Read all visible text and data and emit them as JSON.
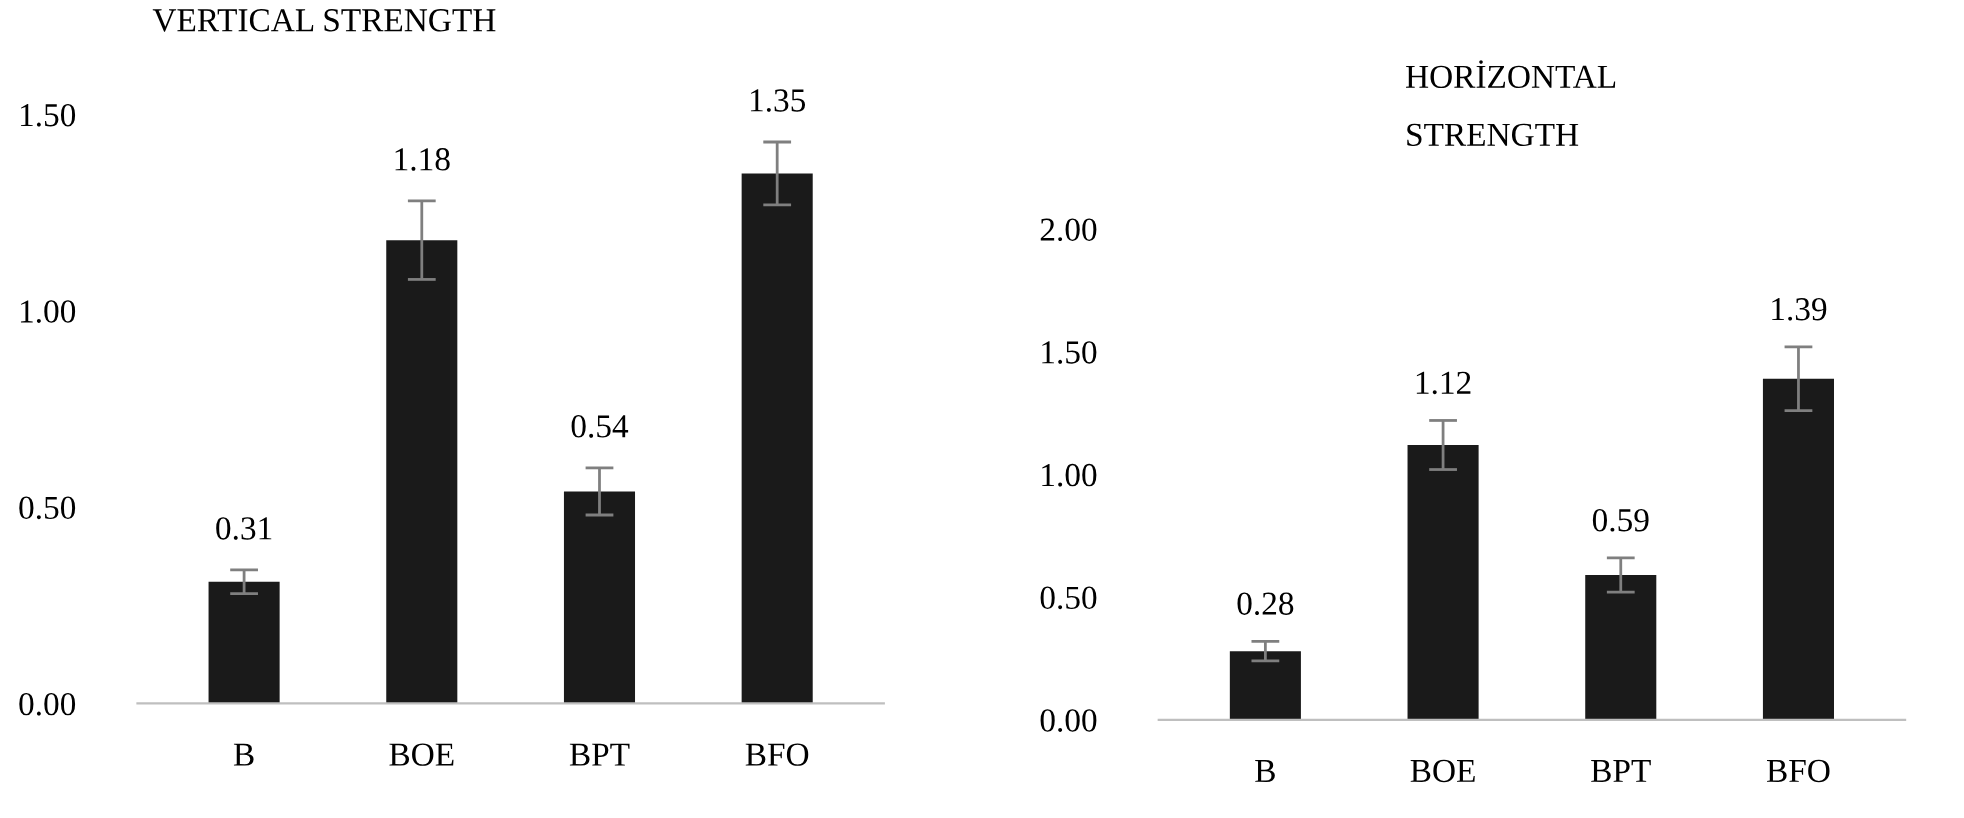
{
  "chart_data": [
    {
      "type": "bar",
      "title": "VERTICAL STRENGTH",
      "categories": [
        "B",
        "BOE",
        "BPT",
        "BFO"
      ],
      "values": [
        0.31,
        1.18,
        0.54,
        1.35
      ],
      "errors": [
        0.03,
        0.1,
        0.06,
        0.08
      ],
      "color": "#1a1a1a",
      "ylim": [
        0,
        1.5
      ],
      "yticks": [
        {
          "value": 0,
          "label": "0.00"
        },
        {
          "value": 0.5,
          "label": "0.50"
        },
        {
          "value": 1,
          "label": "1.00"
        },
        {
          "value": 1.5,
          "label": "1.50"
        }
      ],
      "grid": false,
      "data_labels": true
    },
    {
      "type": "bar",
      "title": "HORİZONTAL\nSTRENGTH",
      "categories": [
        "B",
        "BOE",
        "BPT",
        "BFO"
      ],
      "values": [
        0.28,
        1.12,
        0.59,
        1.39
      ],
      "errors": [
        0.04,
        0.1,
        0.07,
        0.13
      ],
      "color": "#1a1a1a",
      "ylim": [
        0,
        2
      ],
      "yticks": [
        {
          "value": 0,
          "label": "0.00"
        },
        {
          "value": 0.5,
          "label": "0.50"
        },
        {
          "value": 1,
          "label": "1.00"
        },
        {
          "value": 1.5,
          "label": "1.50"
        },
        {
          "value": 2,
          "label": "2.00"
        }
      ],
      "grid": false,
      "data_labels": true
    }
  ]
}
